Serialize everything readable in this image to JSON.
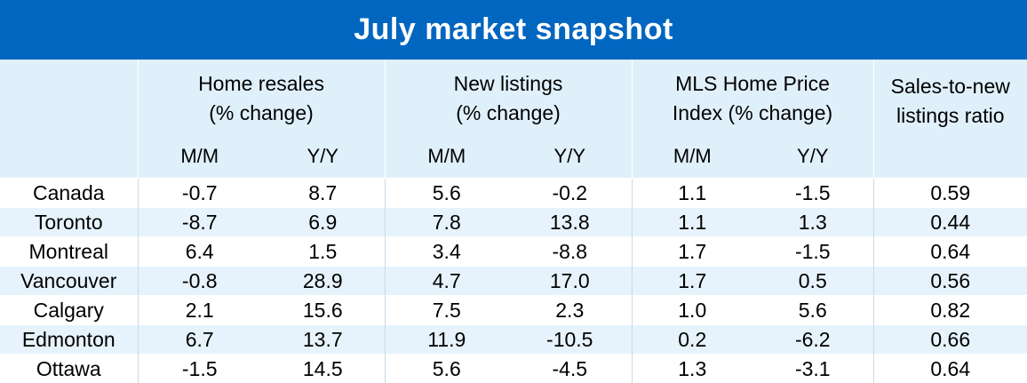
{
  "title": "July market snapshot",
  "chart_data": {
    "type": "table",
    "title": "July market snapshot",
    "groups": [
      {
        "label_line1": "Home resales",
        "label_line2": "(% change)",
        "sub": [
          "M/M",
          "Y/Y"
        ]
      },
      {
        "label_line1": "New listings",
        "label_line2": "(% change)",
        "sub": [
          "M/M",
          "Y/Y"
        ]
      },
      {
        "label_line1": "MLS Home Price",
        "label_line2": "Index (% change)",
        "sub": [
          "M/M",
          "Y/Y"
        ]
      },
      {
        "label_line1": "Sales-to-new",
        "label_line2": "listings ratio",
        "sub": [
          ""
        ]
      }
    ],
    "rows": [
      {
        "city": "Canada",
        "values": [
          "-0.7",
          "8.7",
          "5.6",
          "-0.2",
          "1.1",
          "-1.5",
          "0.59"
        ]
      },
      {
        "city": "Toronto",
        "values": [
          "-8.7",
          "6.9",
          "7.8",
          "13.8",
          "1.1",
          "1.3",
          "0.44"
        ]
      },
      {
        "city": "Montreal",
        "values": [
          "6.4",
          "1.5",
          "3.4",
          "-8.8",
          "1.7",
          "-1.5",
          "0.64"
        ]
      },
      {
        "city": "Vancouver",
        "values": [
          "-0.8",
          "28.9",
          "4.7",
          "17.0",
          "1.7",
          "0.5",
          "0.56"
        ]
      },
      {
        "city": "Calgary",
        "values": [
          "2.1",
          "15.6",
          "7.5",
          "2.3",
          "1.0",
          "5.6",
          "0.82"
        ]
      },
      {
        "city": "Edmonton",
        "values": [
          "6.7",
          "13.7",
          "11.9",
          "-10.5",
          "0.2",
          "-6.2",
          "0.66"
        ]
      },
      {
        "city": "Ottawa",
        "values": [
          "-1.5",
          "14.5",
          "5.6",
          "-4.5",
          "1.3",
          "-3.1",
          "0.64"
        ]
      }
    ]
  },
  "colors": {
    "title_bg": "#0066c0",
    "header_bg": "#e0f0fb",
    "stripe_bg": "#e6f3fc"
  }
}
